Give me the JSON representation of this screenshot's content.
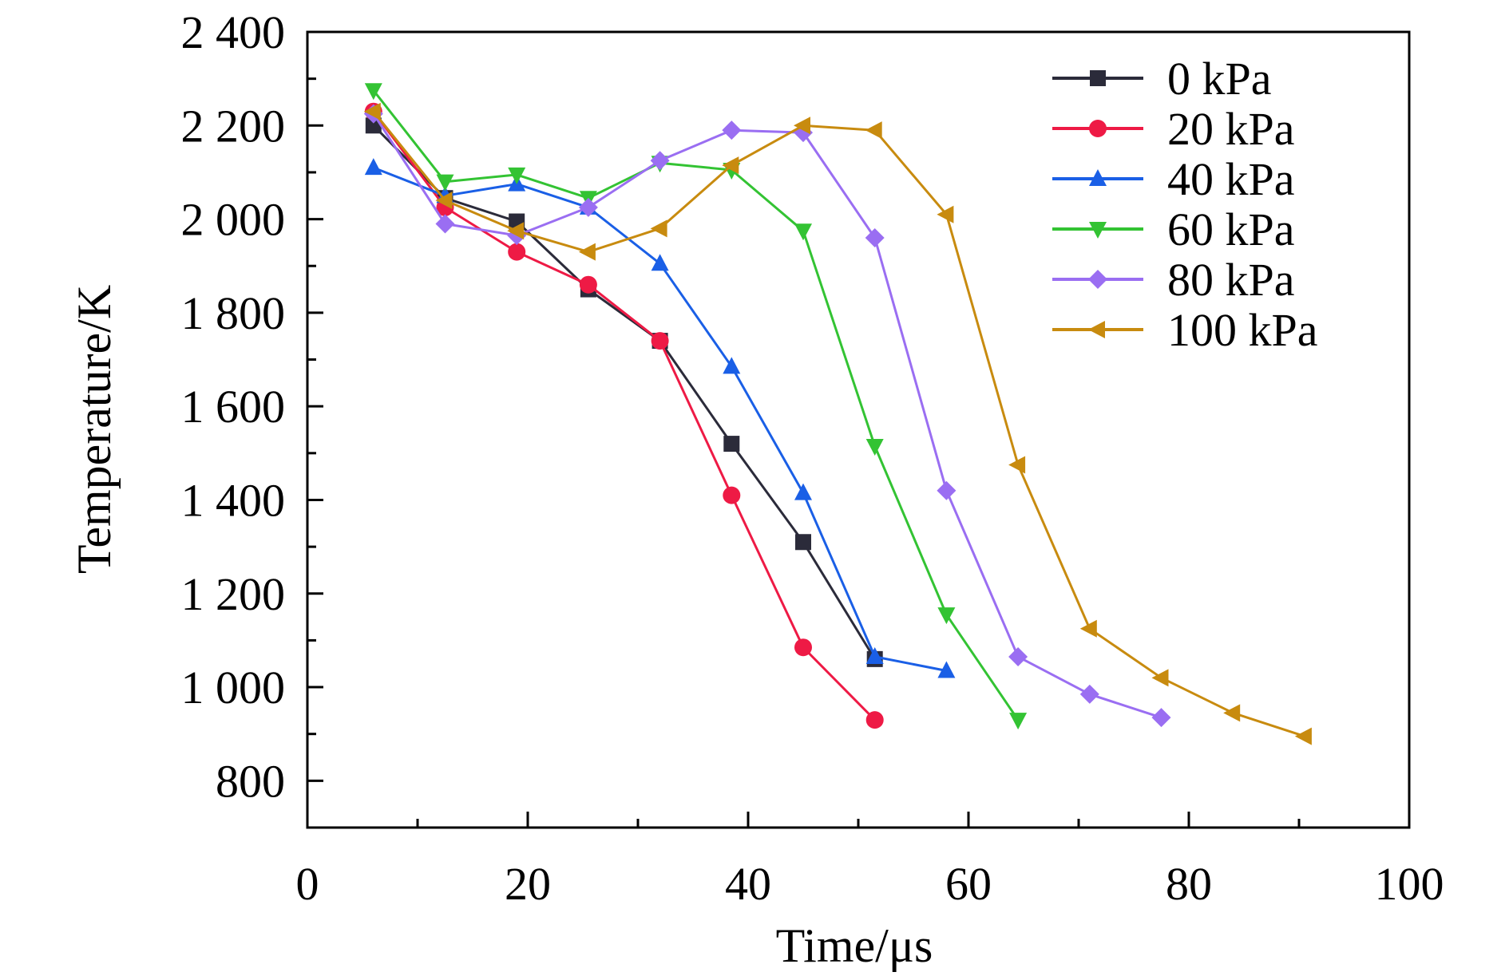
{
  "chart_data": {
    "type": "line",
    "xlabel": "Time/μs",
    "ylabel": "Temperature/K",
    "xlim": [
      0,
      100
    ],
    "ylim": [
      700,
      2400
    ],
    "xticks": [
      0,
      20,
      40,
      60,
      80,
      100
    ],
    "xtick_labels": [
      "0",
      "20",
      "40",
      "60",
      "80",
      "100"
    ],
    "yticks": [
      800,
      1000,
      1200,
      1400,
      1600,
      1800,
      2000,
      2200,
      2400
    ],
    "ytick_labels": [
      "800",
      "1 000",
      "1 200",
      "1 400",
      "1 600",
      "1 800",
      "2 000",
      "2 200",
      "2 400"
    ],
    "grid": false,
    "legend_position": "top-right",
    "series": [
      {
        "name": "0 kPa",
        "color": "#2b2b3a",
        "marker": "square",
        "x": [
          6,
          12.5,
          19,
          25.5,
          32,
          38.5,
          45,
          51.5
        ],
        "y": [
          2200,
          2045,
          1995,
          1850,
          1740,
          1520,
          1310,
          1060
        ]
      },
      {
        "name": "20 kPa",
        "color": "#ee1a45",
        "marker": "circle",
        "x": [
          6,
          12.5,
          19,
          25.5,
          32,
          38.5,
          45,
          51.5
        ],
        "y": [
          2230,
          2025,
          1930,
          1860,
          1740,
          1410,
          1085,
          930
        ]
      },
      {
        "name": "40 kPa",
        "color": "#1a5fe6",
        "marker": "triangle-up",
        "x": [
          6,
          12.5,
          19,
          25.5,
          32,
          38.5,
          45,
          51.5,
          58
        ],
        "y": [
          2110,
          2050,
          2075,
          2025,
          1905,
          1685,
          1415,
          1065,
          1035
        ]
      },
      {
        "name": "60 kPa",
        "color": "#33c333",
        "marker": "triangle-down",
        "x": [
          6,
          12.5,
          19,
          25.5,
          32,
          38.5,
          45,
          51.5,
          58,
          64.5
        ],
        "y": [
          2275,
          2080,
          2095,
          2045,
          2120,
          2105,
          1975,
          1515,
          1155,
          930
        ]
      },
      {
        "name": "80 kPa",
        "color": "#9a6ef2",
        "marker": "diamond",
        "x": [
          6,
          12.5,
          19,
          25.5,
          32,
          38.5,
          45,
          51.5,
          58,
          64.5,
          71,
          77.5
        ],
        "y": [
          2225,
          1990,
          1965,
          2025,
          2125,
          2190,
          2185,
          1960,
          1420,
          1065,
          985,
          935
        ]
      },
      {
        "name": "100 kPa",
        "color": "#c88b0f",
        "marker": "triangle-left",
        "x": [
          6,
          12.5,
          19,
          25.5,
          32,
          38.5,
          45,
          51.5,
          58,
          64.5,
          71,
          77.5,
          84,
          90.5
        ],
        "y": [
          2230,
          2040,
          1975,
          1930,
          1980,
          2115,
          2200,
          2190,
          2010,
          1475,
          1125,
          1020,
          945,
          895
        ]
      }
    ]
  }
}
